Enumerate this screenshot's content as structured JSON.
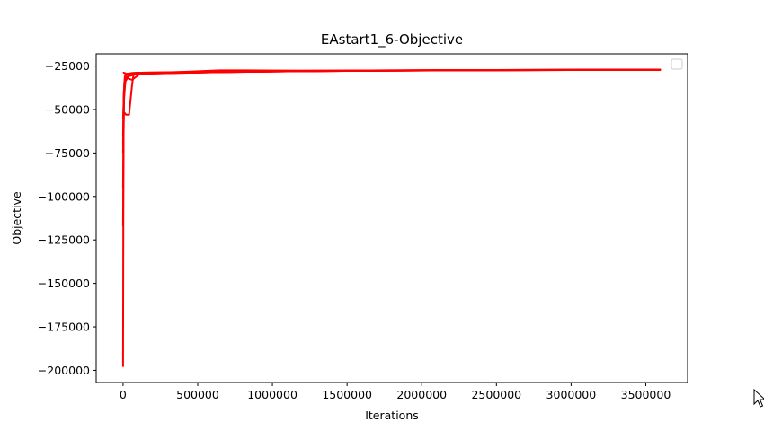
{
  "chart_data": {
    "type": "line",
    "title": "EAstart1_6-Objective",
    "xlabel": "Iterations",
    "ylabel": "Objective",
    "xlim": [
      -180000,
      3780000
    ],
    "ylim": [
      -207000,
      -18000
    ],
    "x_ticks": [
      0,
      500000,
      1000000,
      1500000,
      2000000,
      2500000,
      3000000,
      3500000
    ],
    "x_tick_labels": [
      "0",
      "500000",
      "1000000",
      "1500000",
      "2000000",
      "2500000",
      "3000000",
      "3500000"
    ],
    "y_ticks": [
      -25000,
      -50000,
      -75000,
      -100000,
      -125000,
      -150000,
      -175000,
      -200000
    ],
    "y_tick_labels": [
      "−25000",
      "−50000",
      "−75000",
      "−100000",
      "−125000",
      "−150000",
      "−175000",
      "−200000"
    ],
    "grid": false,
    "legend": {
      "placement": "top-right",
      "entries": []
    },
    "series": [
      {
        "color": "#ff0000",
        "x": [
          0,
          3000,
          6000,
          12000,
          25000,
          60000,
          150000,
          400000,
          700000,
          1000000,
          1500000,
          2000000,
          2500000,
          3000000,
          3600000
        ],
        "y": [
          -198000,
          -60000,
          -42000,
          -31000,
          -29500,
          -29000,
          -28800,
          -28500,
          -27800,
          -27800,
          -27600,
          -27400,
          -27300,
          -27200,
          -27200
        ]
      },
      {
        "color": "#ff0000",
        "x": [
          0,
          4000,
          8000,
          15000,
          30000,
          80000,
          200000,
          500000,
          1000000,
          2000000,
          3000000,
          3600000
        ],
        "y": [
          -117000,
          -52000,
          -35000,
          -30000,
          -29500,
          -29200,
          -29000,
          -28700,
          -28000,
          -27500,
          -27300,
          -27200
        ]
      },
      {
        "color": "#ff0000",
        "x": [
          0,
          5000,
          10000,
          20000,
          40000,
          60000,
          70000,
          100000,
          300000,
          600000,
          900000,
          1500000,
          2500000,
          3600000
        ],
        "y": [
          -75000,
          -53000,
          -52000,
          -53000,
          -53000,
          -36000,
          -30000,
          -29500,
          -29000,
          -28500,
          -28200,
          -27800,
          -27400,
          -27100
        ]
      },
      {
        "color": "#ff0000",
        "x": [
          0,
          5000,
          12000,
          30000,
          60000,
          120000,
          300000,
          650000,
          800000,
          1200000,
          2000000,
          3000000,
          3600000
        ],
        "y": [
          -65000,
          -40000,
          -33000,
          -32000,
          -33000,
          -29000,
          -28700,
          -27500,
          -27500,
          -27700,
          -27400,
          -27200,
          -27100
        ]
      },
      {
        "color": "#ff0000",
        "x": [
          0,
          3000,
          10000,
          25000,
          50000,
          90000,
          200000,
          500000,
          900000,
          1400000,
          2200000,
          3000000,
          3600000
        ],
        "y": [
          -29000,
          -28800,
          -29000,
          -29500,
          -29200,
          -28900,
          -28800,
          -28600,
          -28300,
          -27800,
          -27500,
          -27300,
          -27200
        ]
      },
      {
        "color": "#ff0000",
        "x": [
          0,
          6000,
          15000,
          35000,
          70000,
          150000,
          400000,
          700000,
          1100000,
          1800000,
          2600000,
          3400000,
          3600000
        ],
        "y": [
          -95000,
          -45000,
          -34000,
          -31000,
          -30000,
          -29300,
          -28900,
          -28400,
          -28000,
          -27600,
          -27300,
          -27100,
          -27100
        ]
      },
      {
        "color": "#ff0000",
        "x": [
          0,
          8000,
          20000,
          50000,
          100000,
          250000,
          600000,
          1000000,
          1600000,
          2400000,
          3200000,
          3600000
        ],
        "y": [
          -55000,
          -38000,
          -32000,
          -30000,
          -29400,
          -29000,
          -28600,
          -28100,
          -27700,
          -27400,
          -27200,
          -27200
        ]
      },
      {
        "color": "#ff0000",
        "x": [
          0,
          4000,
          9000,
          18000,
          45000,
          110000,
          350000,
          750000,
          1300000,
          2100000,
          2900000,
          3600000
        ],
        "y": [
          -70000,
          -48000,
          -36000,
          -31500,
          -30200,
          -29500,
          -29000,
          -28300,
          -27900,
          -27500,
          -27300,
          -27100
        ]
      }
    ]
  }
}
